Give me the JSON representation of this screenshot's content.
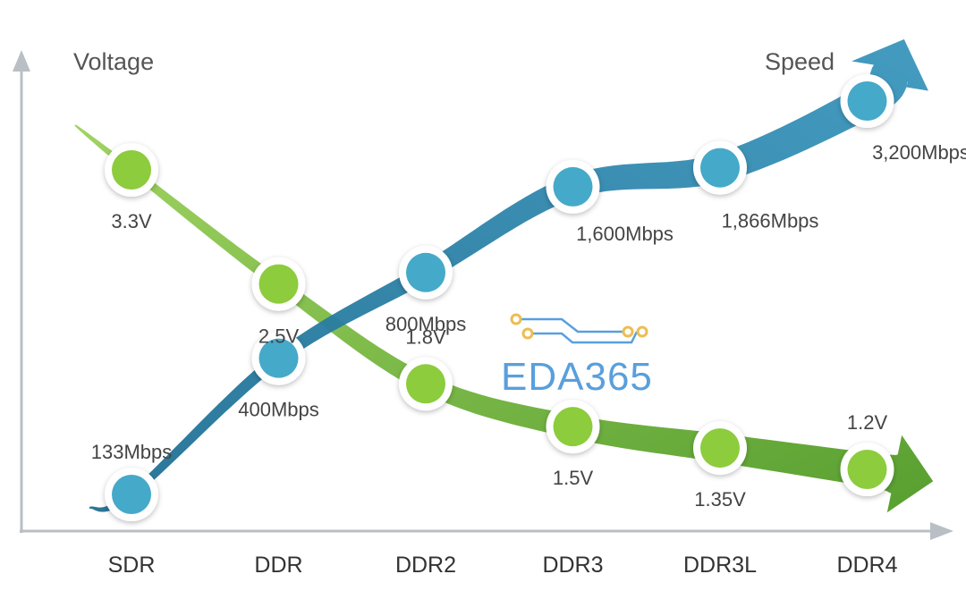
{
  "chart_data": {
    "type": "line",
    "categories": [
      "SDR",
      "DDR",
      "DDR2",
      "DDR3",
      "DDR3L",
      "DDR4"
    ],
    "axis_labels": {
      "left": "Voltage",
      "right": "Speed"
    },
    "series": [
      {
        "name": "Voltage",
        "unit": "V",
        "values": [
          3.3,
          2.5,
          1.8,
          1.5,
          1.35,
          1.2
        ],
        "labels": [
          "3.3V",
          "2.5V",
          "1.8V",
          "1.5V",
          "1.35V",
          "1.2V"
        ],
        "color": "#6aa82f",
        "point_color": "#8ccc3e"
      },
      {
        "name": "Speed",
        "unit": "Mbps",
        "values": [
          133,
          400,
          800,
          1600,
          1866,
          3200
        ],
        "labels": [
          "133Mbps",
          "400Mbps",
          "800Mbps",
          "1,600Mbps",
          "1,866Mbps",
          "3,200Mbps"
        ],
        "color": "#2f88ad",
        "point_color": "#45a9c9"
      }
    ],
    "grid": false,
    "legend": "none"
  },
  "watermark": {
    "text": "EDA365",
    "color": "#3d8fd6"
  }
}
